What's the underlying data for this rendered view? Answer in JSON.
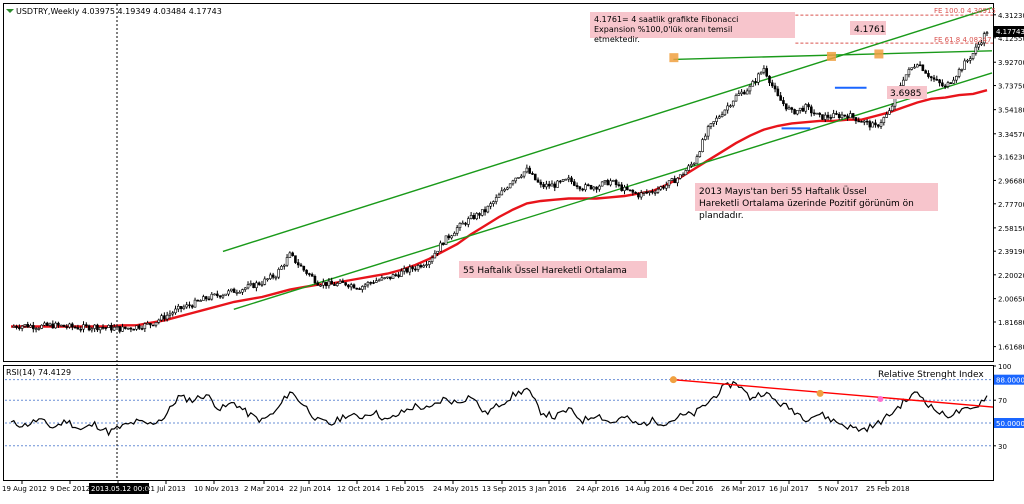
{
  "header": {
    "symbol_info": "USDTRY,Weekly  4.03975 4.19349 4.03484 4.17743",
    "current_price_badge": "4.17743"
  },
  "colors": {
    "background": "#ffffff",
    "candle": "#000000",
    "ema": "#e8141b",
    "channel": "#1a9a1a",
    "fib_line": "#d9534f",
    "annotation_bg": "#f7c5cc",
    "rsi_line": "#000000",
    "rsi_trend": "#ff0000",
    "marker_orange": "#f0a040",
    "marker_blue": "#1a66ff"
  },
  "annotations": {
    "fib_note": "4.1761= 4 saatlik grafikte Fibonacci Expansion %100,0'lük oranı temsil etmektedir.",
    "ema_outlook": "2013 Mayıs'tan beri 55 Haftalık Üssel Hareketli Ortalama üzerinde Pozitif görünüm ön plandadır.",
    "ema_label": "55 Haftalık Üssel Hareketli Ortalama",
    "price_label_top": "4.1761",
    "ema_value_label": "3.6985",
    "fe_100": "FE 100.0 4.30915",
    "fe_618": "FE 61.8 4.08247"
  },
  "rsi_panel": {
    "header": "RSI(14) 74.4129",
    "title": "Relative Strenght Index"
  },
  "chart_data": {
    "type": "candlestick",
    "instrument": "USDTRY",
    "timeframe": "Weekly",
    "ohlc_last": {
      "open": 4.03975,
      "high": 4.19349,
      "low": 4.03484,
      "close": 4.17743
    },
    "price_axis_ticks": [
      "4.31230",
      "4.12550",
      "3.92700",
      "3.73750",
      "3.54180",
      "3.34570",
      "3.16230",
      "2.96680",
      "2.77700",
      "2.58150",
      "2.39190",
      "2.20020",
      "2.00650",
      "1.81680",
      "1.61680"
    ],
    "price_axis_range": [
      1.5,
      4.4
    ],
    "x_tick_labels": [
      "19 Aug 2012",
      "9 Dec 2012",
      "2013.05.12 00:00",
      "21 Jul 2013",
      "10 Nov 2013",
      "2 Mar 2014",
      "22 Jun 2014",
      "12 Oct 2014",
      "1 Feb 2015",
      "24 May 2015",
      "13 Sep 2015",
      "3 Jan 2016",
      "24 Apr 2016",
      "14 Aug 2016",
      "4 Dec 2016",
      "26 Mar 2017",
      "16 Jul 2017",
      "5 Nov 2017",
      "25 Feb 2018"
    ],
    "highlighted_x_label": "2013.05.12 00:00",
    "close_series": [
      1.78,
      1.79,
      1.78,
      1.79,
      1.78,
      1.77,
      1.78,
      1.77,
      1.76,
      1.78,
      1.8,
      1.86,
      1.92,
      1.96,
      2.01,
      2.04,
      2.07,
      2.1,
      2.14,
      2.2,
      2.36,
      2.24,
      2.14,
      2.12,
      2.13,
      2.1,
      2.15,
      2.17,
      2.22,
      2.26,
      2.32,
      2.47,
      2.58,
      2.66,
      2.72,
      2.84,
      2.98,
      3.05,
      2.92,
      2.93,
      2.97,
      2.91,
      2.92,
      2.96,
      2.89,
      2.85,
      2.88,
      2.93,
      3.0,
      3.12,
      3.38,
      3.52,
      3.65,
      3.72,
      3.88,
      3.64,
      3.52,
      3.56,
      3.48,
      3.49,
      3.5,
      3.45,
      3.4,
      3.52,
      3.8,
      3.93,
      3.8,
      3.72,
      3.86,
      4.0,
      4.18
    ],
    "ema55_series": [
      1.78,
      1.78,
      1.78,
      1.78,
      1.78,
      1.78,
      1.78,
      1.78,
      1.79,
      1.79,
      1.81,
      1.83,
      1.86,
      1.89,
      1.92,
      1.95,
      1.98,
      2.0,
      2.02,
      2.05,
      2.08,
      2.1,
      2.12,
      2.13,
      2.15,
      2.17,
      2.19,
      2.21,
      2.24,
      2.28,
      2.33,
      2.39,
      2.45,
      2.53,
      2.6,
      2.67,
      2.73,
      2.78,
      2.8,
      2.81,
      2.82,
      2.82,
      2.82,
      2.83,
      2.84,
      2.86,
      2.88,
      2.93,
      2.99,
      3.06,
      3.13,
      3.2,
      3.27,
      3.33,
      3.38,
      3.41,
      3.43,
      3.44,
      3.45,
      3.45,
      3.46,
      3.46,
      3.49,
      3.52,
      3.56,
      3.6,
      3.63,
      3.64,
      3.66,
      3.67,
      3.7
    ],
    "channel_upper": {
      "from": [
        0.2206,
        2.39
      ],
      "to": [
        0.999,
        4.37
      ]
    },
    "channel_lower": {
      "from": [
        0.2316,
        1.92
      ],
      "to": [
        0.999,
        3.84
      ]
    },
    "resistance_line": {
      "from": [
        0.6765,
        3.95
      ],
      "to": [
        0.999,
        4.02
      ]
    },
    "fib_levels": [
      {
        "label": "FE 100.0",
        "value": 4.30915
      },
      {
        "label": "FE 61.8",
        "value": 4.08247
      }
    ],
    "rsi": {
      "period": 14,
      "last": 74.4129,
      "axis_ticks": [
        100,
        70,
        50,
        30
      ],
      "levels": [
        88.0,
        70,
        50,
        30
      ],
      "level_badges": [
        "88.0000",
        "50.0000"
      ],
      "range": [
        0,
        100
      ],
      "values": [
        50,
        48,
        53,
        46,
        52,
        44,
        49,
        42,
        47,
        51,
        49,
        55,
        73,
        70,
        75,
        62,
        68,
        58,
        52,
        60,
        78,
        66,
        52,
        49,
        57,
        55,
        60,
        52,
        59,
        65,
        62,
        71,
        68,
        74,
        58,
        66,
        74,
        80,
        60,
        55,
        62,
        52,
        58,
        50,
        55,
        48,
        52,
        50,
        56,
        58,
        68,
        80,
        86,
        72,
        77,
        68,
        62,
        54,
        58,
        52,
        47,
        44,
        48,
        57,
        68,
        77,
        64,
        56,
        60,
        62,
        74
      ]
    }
  }
}
